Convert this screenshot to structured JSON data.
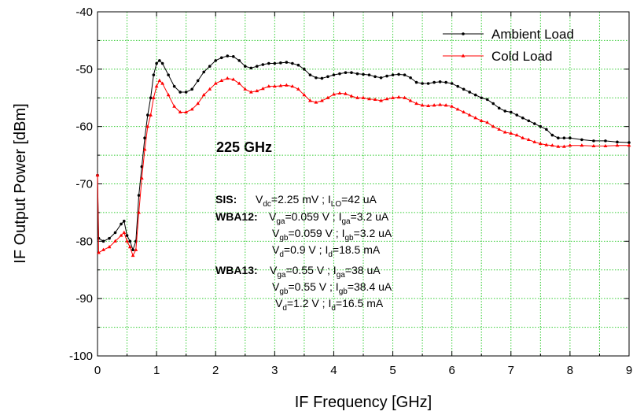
{
  "chart_data": {
    "type": "line",
    "xlabel": "IF Frequency [GHz]",
    "ylabel": "IF Output Power [dBm]",
    "xlim": [
      0,
      9
    ],
    "ylim": [
      -100,
      -40
    ],
    "xticks": [
      0,
      1,
      2,
      3,
      4,
      5,
      6,
      7,
      8,
      9
    ],
    "yticks": [
      -100,
      -90,
      -80,
      -70,
      -60,
      -50,
      -40
    ],
    "x_minor_ticks": [
      0.5,
      1.5,
      2.5,
      3.5,
      4.5,
      5.5,
      6.5,
      7.5,
      8.5
    ],
    "y_minor_ticks": [
      -95,
      -85,
      -75,
      -65,
      -55,
      -45
    ],
    "grid": true,
    "grid_color": "#33cc33",
    "legend": "top-right",
    "x": [
      0,
      0.02,
      0.1,
      0.2,
      0.3,
      0.4,
      0.45,
      0.5,
      0.55,
      0.6,
      0.65,
      0.7,
      0.75,
      0.8,
      0.85,
      0.9,
      0.95,
      1.0,
      1.05,
      1.1,
      1.2,
      1.3,
      1.4,
      1.5,
      1.6,
      1.7,
      1.8,
      1.9,
      2.0,
      2.1,
      2.2,
      2.3,
      2.4,
      2.5,
      2.6,
      2.7,
      2.8,
      2.9,
      3.0,
      3.1,
      3.2,
      3.3,
      3.4,
      3.5,
      3.6,
      3.7,
      3.8,
      3.9,
      4.0,
      4.1,
      4.2,
      4.3,
      4.4,
      4.5,
      4.6,
      4.7,
      4.8,
      4.9,
      5.0,
      5.1,
      5.2,
      5.3,
      5.4,
      5.5,
      5.6,
      5.7,
      5.8,
      5.9,
      6.0,
      6.1,
      6.2,
      6.3,
      6.4,
      6.5,
      6.6,
      6.7,
      6.8,
      6.9,
      7.0,
      7.1,
      7.2,
      7.3,
      7.4,
      7.5,
      7.6,
      7.7,
      7.8,
      7.9,
      8.0,
      8.2,
      8.4,
      8.6,
      8.8,
      9.0
    ],
    "series": [
      {
        "name": "Ambient Load",
        "color": "#000000",
        "marker": "circle",
        "values": [
          -68.5,
          -79.5,
          -80,
          -79.5,
          -78.5,
          -77,
          -76.5,
          -79,
          -80,
          -81.5,
          -80,
          -72,
          -67,
          -62,
          -58,
          -55,
          -51,
          -49,
          -48.5,
          -49,
          -51,
          -53,
          -54,
          -54,
          -53.5,
          -52,
          -50.5,
          -49.5,
          -48.5,
          -48,
          -47.7,
          -47.8,
          -48.5,
          -49.5,
          -49.8,
          -49.5,
          -49.2,
          -49,
          -49,
          -48.9,
          -48.8,
          -49,
          -49.3,
          -50,
          -51,
          -51.5,
          -51.6,
          -51.3,
          -51,
          -50.8,
          -50.6,
          -50.6,
          -50.8,
          -50.9,
          -51,
          -51.3,
          -51.5,
          -51.2,
          -51,
          -50.9,
          -51,
          -51.5,
          -52.3,
          -52.5,
          -52.5,
          -52.3,
          -52.2,
          -52.3,
          -52.5,
          -53,
          -53.5,
          -54,
          -54.5,
          -55,
          -55.3,
          -56,
          -56.8,
          -57.3,
          -57.5,
          -58,
          -58.5,
          -59,
          -59.5,
          -60,
          -60.5,
          -61.5,
          -62,
          -62,
          -62,
          -62.3,
          -62.5,
          -62.5,
          -62.7,
          -62.8
        ]
      },
      {
        "name": "Cold Load",
        "color": "#ff0000",
        "marker": "triangle",
        "values": [
          -68.5,
          -82,
          -81.5,
          -81,
          -80,
          -79,
          -78.5,
          -80,
          -81,
          -82.5,
          -81.5,
          -75,
          -69,
          -64,
          -60,
          -58,
          -55,
          -53,
          -52,
          -52.5,
          -54.5,
          -56.5,
          -57.5,
          -57.5,
          -57,
          -56,
          -54.5,
          -53.5,
          -52.5,
          -52,
          -51.6,
          -51.8,
          -52.5,
          -53.5,
          -54,
          -53.8,
          -53.4,
          -53,
          -53,
          -52.9,
          -52.8,
          -53,
          -53.5,
          -54.5,
          -55.5,
          -55.8,
          -55.5,
          -55,
          -54.4,
          -54.2,
          -54.3,
          -54.7,
          -55,
          -55,
          -55.2,
          -55.3,
          -55.5,
          -55.2,
          -55,
          -54.9,
          -55,
          -55.5,
          -56,
          -56.3,
          -56.4,
          -56.3,
          -56.2,
          -56.3,
          -56.5,
          -57,
          -57.5,
          -58,
          -58.5,
          -59,
          -59.3,
          -60,
          -60.5,
          -61,
          -61.2,
          -61.5,
          -62,
          -62.3,
          -62.7,
          -63,
          -63.2,
          -63.3,
          -63.5,
          -63.5,
          -63.3,
          -63.3,
          -63.4,
          -63.4,
          -63.3,
          -63.3
        ]
      }
    ],
    "annotations": {
      "frequency": "225 GHz",
      "bias": [
        {
          "label": "SIS:",
          "parts": [
            "V",
            "dc",
            "=2.25 mV ; I",
            "LO",
            "=42 uA"
          ]
        },
        {
          "label": "WBA12:",
          "parts": [
            "V",
            "ga",
            "=0.059 V ; I",
            "ga",
            "=3.2 uA"
          ]
        },
        {
          "parts": [
            "V",
            "gb",
            "=0.059 V ; I",
            "gb",
            "=3.2 uA"
          ]
        },
        {
          "parts": [
            "V",
            "d",
            "=0.9 V ; I",
            "d",
            "=18.5 mA"
          ]
        },
        {
          "label": "WBA13:",
          "parts": [
            "V",
            "ga",
            "=0.55 V ; I",
            "ga",
            "=38 uA"
          ]
        },
        {
          "parts": [
            "V",
            "gb",
            "=0.55 V ; I",
            "gb",
            "=38.4 uA"
          ]
        },
        {
          "parts": [
            "V",
            "d",
            "=1.2 V ; I",
            "d",
            "=16.5 mA"
          ]
        }
      ]
    }
  }
}
